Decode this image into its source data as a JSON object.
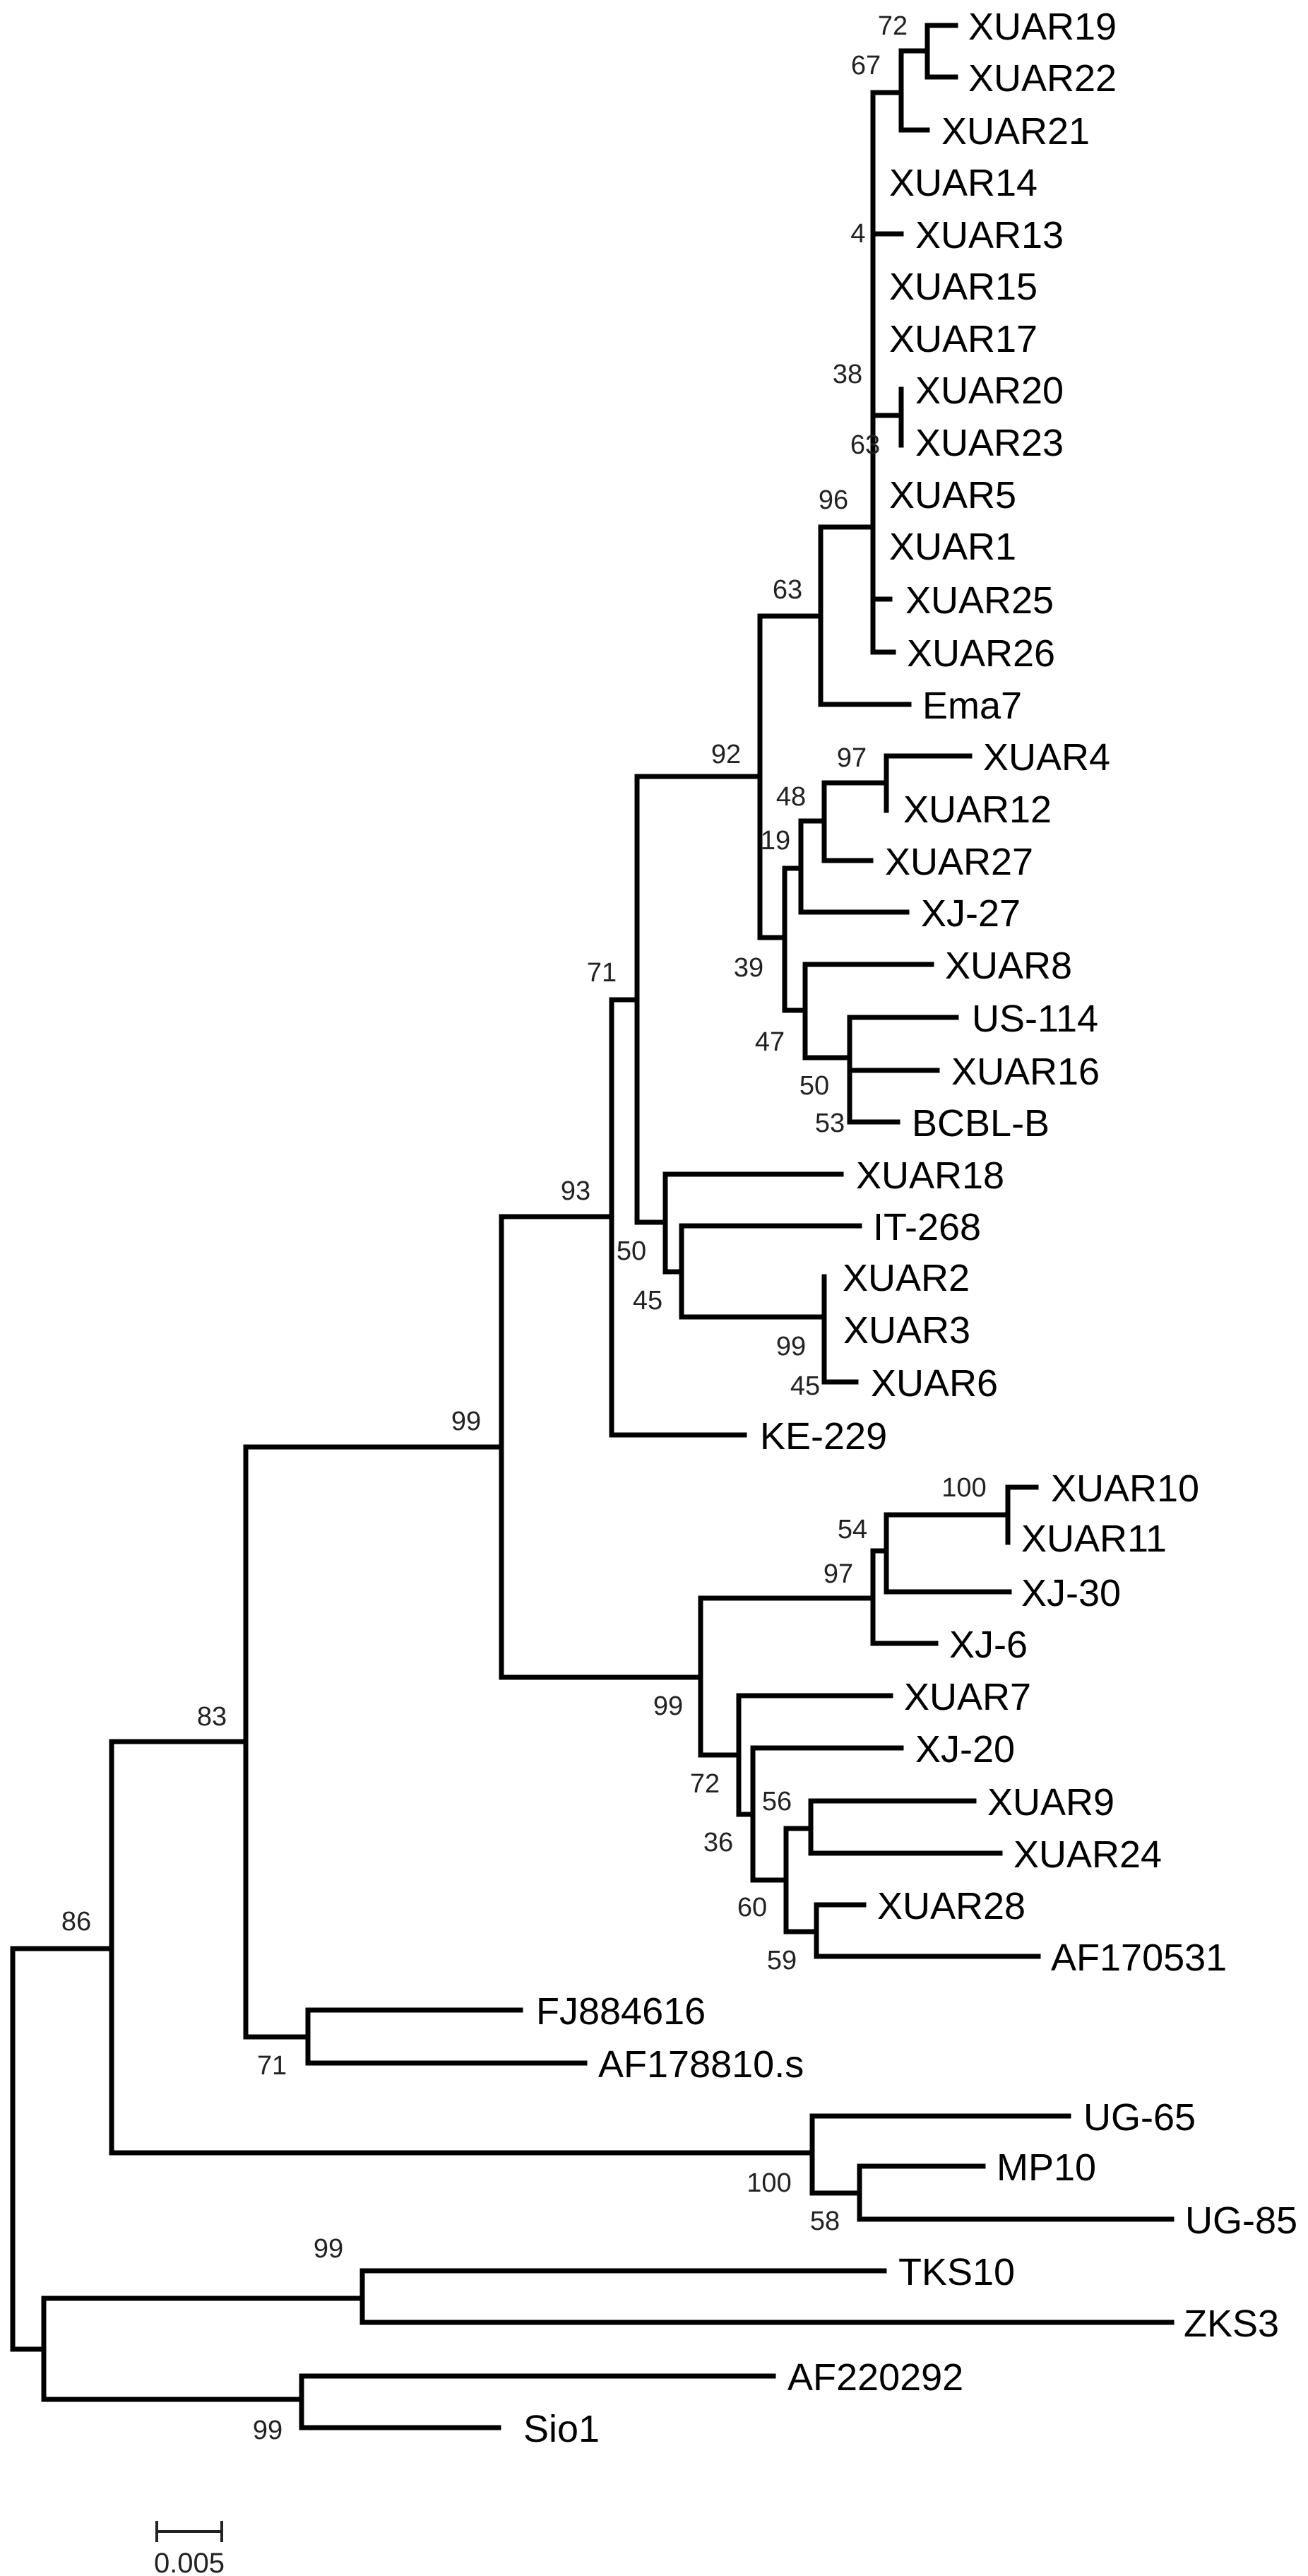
{
  "figure": {
    "type": "phylogenetic-tree",
    "line_color": "#000000",
    "leaves": [
      "XUAR19",
      "XUAR22",
      "XUAR21",
      "XUAR14",
      "XUAR13",
      "XUAR15",
      "XUAR17",
      "XUAR20",
      "XUAR23",
      "XUAR5",
      "XUAR1",
      "XUAR25",
      "XUAR26",
      "Ema7",
      "XUAR4",
      "XUAR12",
      "XUAR27",
      "XJ-27",
      "XUAR8",
      "US-114",
      "XUAR16",
      "BCBL-B",
      "XUAR18",
      "IT-268",
      "XUAR2",
      "XUAR3",
      "XUAR6",
      "KE-229",
      "XUAR10",
      "XUAR11",
      "XJ-30",
      "XJ-6",
      "XUAR7",
      "XJ-20",
      "XUAR9",
      "XUAR24",
      "XUAR28",
      "AF170531",
      "FJ884616",
      "AF178810.s",
      "UG-65",
      "MP10",
      "UG-85",
      "TKS10",
      "ZKS3",
      "AF220292",
      "Sio1"
    ],
    "bootstrap_values": [
      "72",
      "67",
      "4",
      "38",
      "63",
      "96",
      "63",
      "92",
      "97",
      "48",
      "19",
      "39",
      "47",
      "50",
      "53",
      "71",
      "93",
      "50",
      "45",
      "99",
      "45",
      "99",
      "100",
      "54",
      "97",
      "99",
      "72",
      "56",
      "36",
      "60",
      "59",
      "83",
      "86",
      "71",
      "100",
      "58",
      "99",
      "99"
    ],
    "scale_bar": {
      "label": "0.005",
      "value": 0.005
    }
  }
}
